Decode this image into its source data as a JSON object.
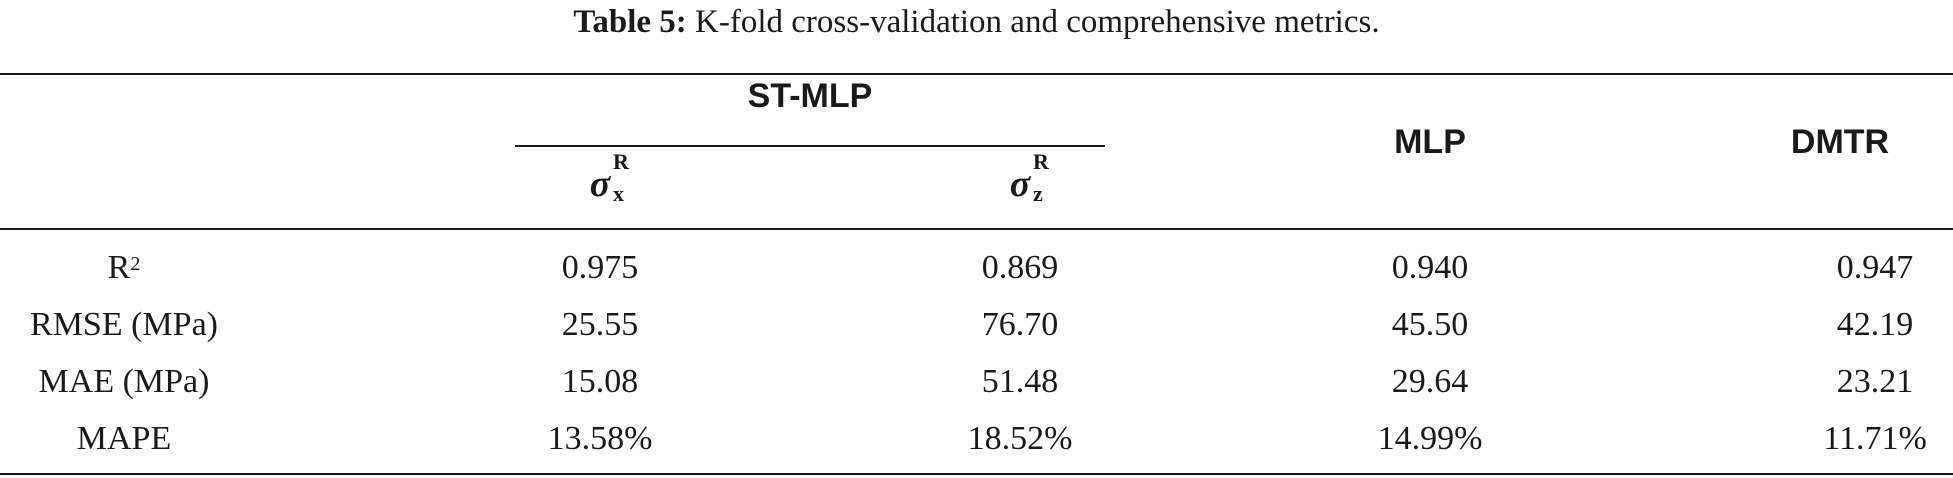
{
  "caption": {
    "label": "Table 5:",
    "text": "K-fold cross-validation and comprehensive metrics."
  },
  "header": {
    "group": "ST-MLP",
    "sigma_symbol": "σ",
    "sub_col1": {
      "sub": "x",
      "sup": "R"
    },
    "sub_col2": {
      "sub": "z",
      "sup": "R"
    },
    "col3": "MLP",
    "col4": "DMTR"
  },
  "rows": [
    {
      "label": "R",
      "label_sup": "2",
      "values": [
        "0.975",
        "0.869",
        "0.940",
        "0.947"
      ]
    },
    {
      "label": "RMSE (MPa)",
      "label_sup": "",
      "values": [
        "25.55",
        "76.70",
        "45.50",
        "42.19"
      ]
    },
    {
      "label": "MAE (MPa)",
      "label_sup": "",
      "values": [
        "15.08",
        "51.48",
        "29.64",
        "23.21"
      ]
    },
    {
      "label": "MAPE",
      "label_sup": "",
      "values": [
        "13.58%",
        "18.52%",
        "14.99%",
        "11.71%"
      ]
    }
  ]
}
